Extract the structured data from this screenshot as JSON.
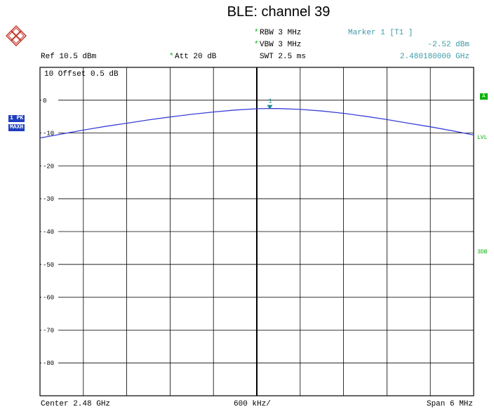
{
  "title": "BLE:  channel 39",
  "header": {
    "ref": "Ref  10.5 dBm",
    "att": "Att  20 dB",
    "rbw": "RBW 3 MHz",
    "vbw": "VBW 3 MHz",
    "swt": "SWT 2.5 ms",
    "marker_title": "Marker 1 [T1 ]",
    "marker_level": "-2.52 dBm",
    "marker_freq": "2.480180000 GHz",
    "offset": "10  Offset  0.5 dB",
    "star": "*"
  },
  "side_labels": {
    "trace1": "1 PK",
    "trace2": "MAXH"
  },
  "right_labels": {
    "a": "A",
    "lvl": "LVL",
    "three_db": "3DB"
  },
  "footer": {
    "center": "Center 2.48 GHz",
    "per_div": "600 kHz/",
    "span": "Span 6 MHz"
  },
  "colors": {
    "trace": "#3a3fd6",
    "marker": "#1a8a8a",
    "grid": "#000000",
    "accent_green": "#00b000",
    "label_bg": "#1f3fbf"
  },
  "chart_data": {
    "type": "line",
    "title": "BLE:  channel 39",
    "xlabel": "",
    "ylabel": "",
    "x_unit": "MHz",
    "y_unit": "dBm",
    "xlim": [
      2477,
      2483
    ],
    "ylim": [
      -90,
      10
    ],
    "y_ticks": [
      0,
      -10,
      -20,
      -30,
      -40,
      -50,
      -60,
      -70,
      -80
    ],
    "y_tick_labels": [
      "0",
      "-10",
      "-20",
      "-30",
      "-40",
      "-50",
      "-60",
      "-70",
      "-80"
    ],
    "grid": true,
    "series": [
      {
        "x": [
          2477.0,
          2477.3,
          2477.6,
          2477.9,
          2478.2,
          2478.5,
          2478.8,
          2479.1,
          2479.4,
          2479.7,
          2480.0,
          2480.18,
          2480.3,
          2480.6,
          2480.9,
          2481.2,
          2481.5,
          2481.8,
          2482.1,
          2482.4,
          2482.7,
          2483.0
        ],
        "values": [
          -11.5,
          -10.3,
          -9.1,
          -8.0,
          -7.0,
          -6.0,
          -5.1,
          -4.3,
          -3.6,
          -3.0,
          -2.6,
          -2.52,
          -2.55,
          -2.8,
          -3.3,
          -4.0,
          -4.9,
          -5.9,
          -7.0,
          -8.1,
          -9.3,
          -10.6
        ]
      }
    ],
    "marker": {
      "label": "1",
      "x": 2480.18,
      "y": -2.52
    }
  }
}
